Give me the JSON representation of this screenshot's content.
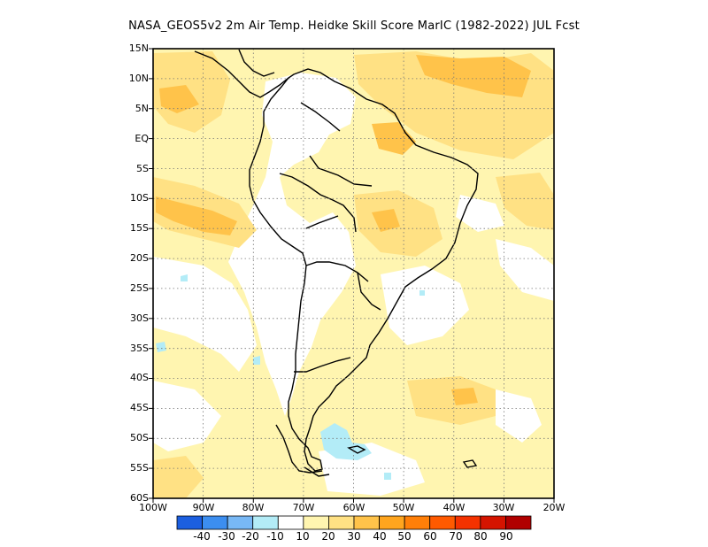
{
  "title": "NASA_GEOS5v2  2m Air Temp. Heidke Skill Score MarIC (1982-2022) JUL Fcst",
  "lat_labels": [
    "15N",
    "10N",
    "5N",
    "EQ",
    "5S",
    "10S",
    "15S",
    "20S",
    "25S",
    "30S",
    "35S",
    "40S",
    "45S",
    "50S",
    "55S",
    "60S"
  ],
  "lon_labels": [
    "100W",
    "90W",
    "80W",
    "70W",
    "60W",
    "50W",
    "40W",
    "30W",
    "20W"
  ],
  "colorbar": {
    "colors": [
      "#1c5fe0",
      "#3c8ef0",
      "#78b8f5",
      "#b3ecf7",
      "#ffffff",
      "#fff5b0",
      "#ffe184",
      "#ffc34a",
      "#ffa51e",
      "#ff7f08",
      "#ff5a00",
      "#f43200",
      "#d51400",
      "#b00000"
    ],
    "labels": [
      "-40",
      "-30",
      "-20",
      "-10",
      "10",
      "20",
      "30",
      "40",
      "50",
      "60",
      "70",
      "80",
      "90"
    ]
  },
  "map": {
    "domain": {
      "lon": [
        -100,
        -20
      ],
      "lat": [
        -60,
        15
      ]
    },
    "field": "Heidke Skill Score",
    "palette": {
      "white": "#ffffff",
      "pale": "#fff5b0",
      "light": "#ffe184",
      "orange": "#ffc34a",
      "cyan": "#b3ecf7"
    }
  }
}
